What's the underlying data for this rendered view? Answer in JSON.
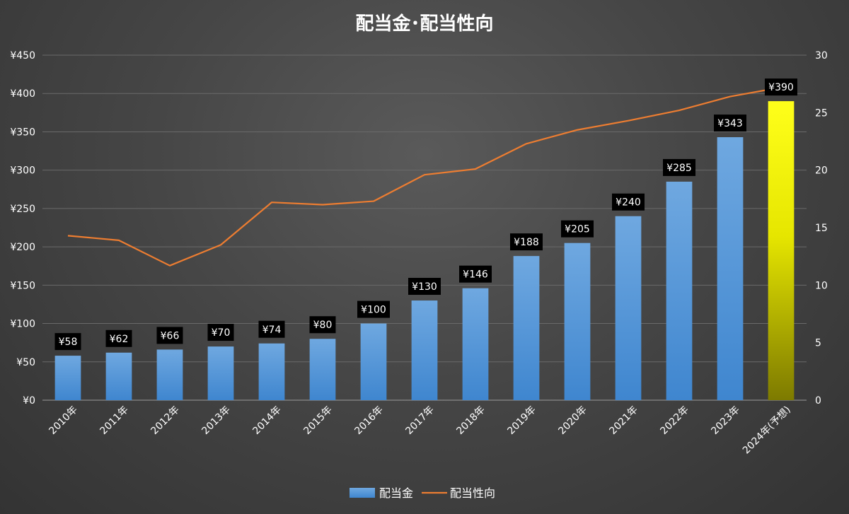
{
  "chart_data": {
    "type": "bar",
    "title": "配当金･配当性向",
    "categories": [
      "2010年",
      "2011年",
      "2012年",
      "2013年",
      "2014年",
      "2015年",
      "2016年",
      "2017年",
      "2018年",
      "2019年",
      "2020年",
      "2021年",
      "2022年",
      "2023年",
      "2024年(予想)"
    ],
    "series": [
      {
        "name": "配当金",
        "type": "bar",
        "axis": "left",
        "values": [
          58,
          62,
          66,
          70,
          74,
          80,
          100,
          130,
          146,
          188,
          205,
          240,
          285,
          343,
          390
        ],
        "labels": [
          "¥58",
          "¥62",
          "¥66",
          "¥70",
          "¥74",
          "¥80",
          "¥100",
          "¥130",
          "¥146",
          "¥188",
          "¥205",
          "¥240",
          "¥285",
          "¥343",
          "¥390"
        ],
        "color": "#5b9bd5",
        "highlight_color": "#ffff00",
        "highlight_index": 14
      },
      {
        "name": "配当性向",
        "type": "line",
        "axis": "right",
        "values": [
          14.3,
          13.9,
          11.7,
          13.5,
          17.2,
          17.0,
          17.3,
          19.6,
          20.1,
          22.3,
          23.5,
          24.3,
          25.2,
          26.4,
          27.2
        ],
        "color": "#ed7d31"
      }
    ],
    "yaxis_left": {
      "ylim": [
        0,
        450
      ],
      "ticks": [
        0,
        50,
        100,
        150,
        200,
        250,
        300,
        350,
        400,
        450
      ],
      "tick_labels": [
        "¥0",
        "¥50",
        "¥100",
        "¥150",
        "¥200",
        "¥250",
        "¥300",
        "¥350",
        "¥400",
        "¥450"
      ]
    },
    "yaxis_right": {
      "ylim": [
        0,
        30
      ],
      "ticks": [
        0,
        5,
        10,
        15,
        20,
        25,
        30
      ],
      "tick_labels": [
        "0",
        "5",
        "10",
        "15",
        "20",
        "25",
        "30"
      ]
    },
    "grid": true,
    "legend": "bottom",
    "legend_entries": [
      "配当金",
      "配当性向"
    ]
  }
}
